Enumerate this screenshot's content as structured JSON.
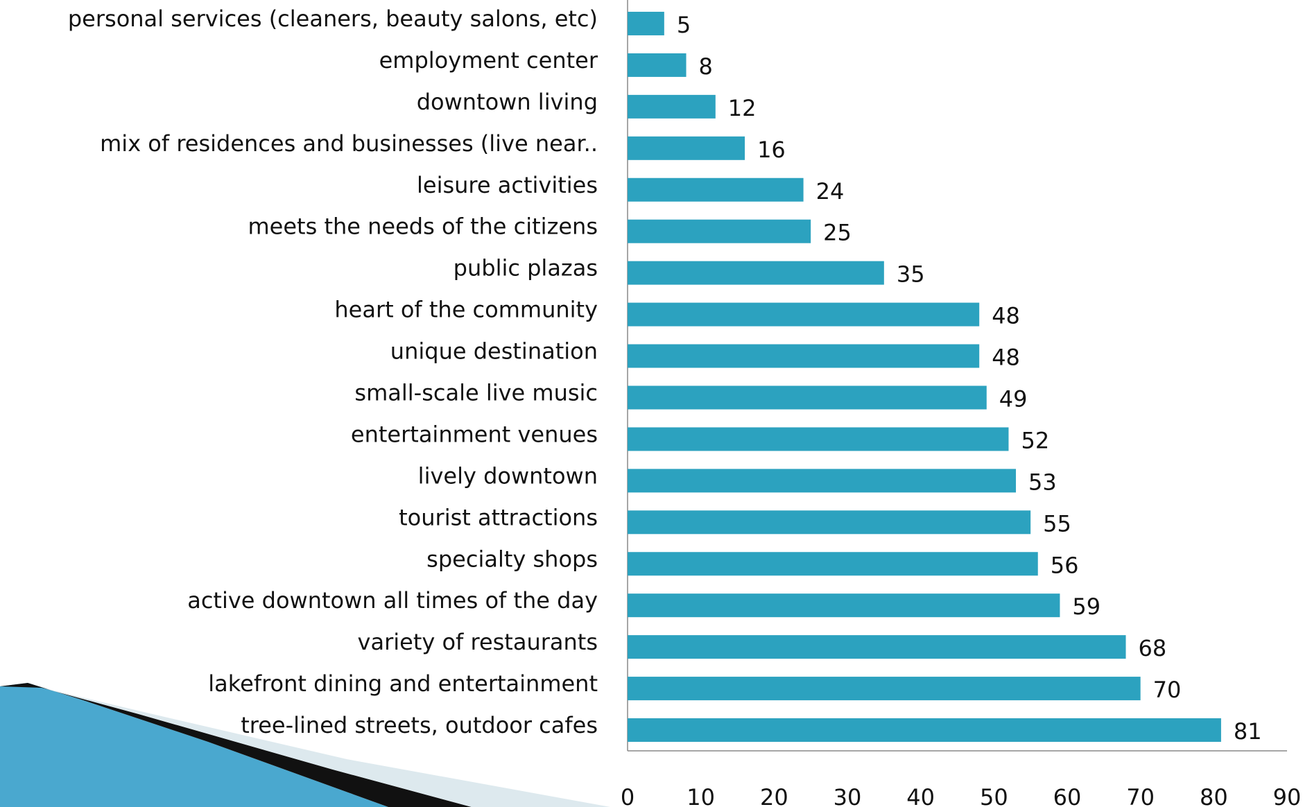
{
  "chart_data": {
    "type": "bar",
    "orientation": "horizontal",
    "categories": [
      "personal services (cleaners, beauty salons, etc)",
      "employment center",
      "downtown living",
      "mix of residences and businesses (live near..",
      "leisure activities",
      "meets the needs of the citizens",
      "public plazas",
      "heart of the community",
      "unique destination",
      "small-scale live music",
      "entertainment venues",
      "lively downtown",
      "tourist attractions",
      "specialty shops",
      "active downtown all times of the day",
      "variety of restaurants",
      "lakefront dining and entertainment",
      "tree-lined streets, outdoor cafes"
    ],
    "values": [
      5,
      8,
      12,
      16,
      24,
      25,
      35,
      48,
      48,
      49,
      52,
      53,
      55,
      56,
      59,
      68,
      70,
      81
    ],
    "color": "#2ca2bf",
    "xlim": [
      0,
      90
    ],
    "xticks": [
      0,
      10,
      20,
      30,
      40,
      50,
      60,
      70,
      80,
      90
    ]
  }
}
